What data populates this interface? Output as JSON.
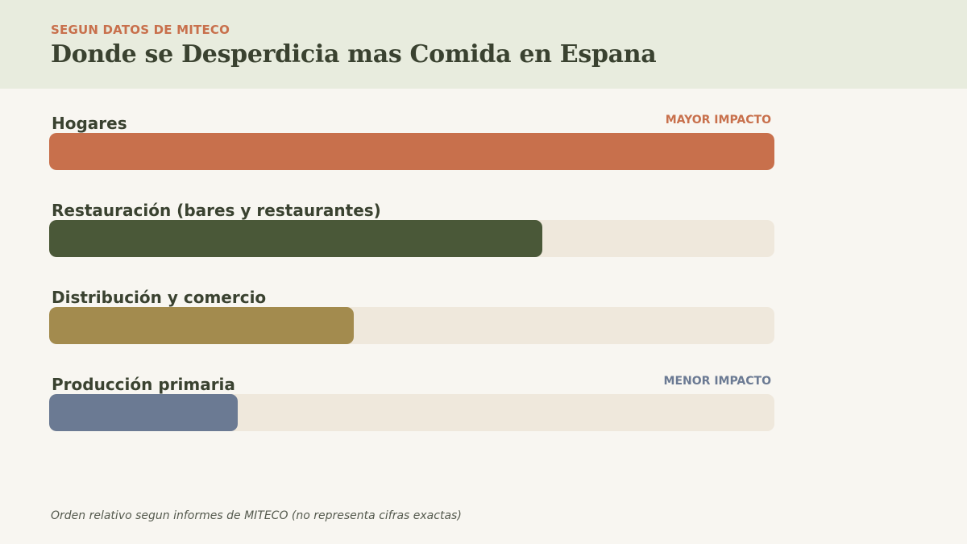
{
  "header": {
    "kicker": "SEGUN DATOS DE MITECO",
    "title": "Donde se Desperdicia mas Comida en Espana"
  },
  "colors": {
    "header_bg": "#e8ecde",
    "track": "#efe8dc",
    "high_tag": "#c8704c",
    "low_tag": "#6b7a93"
  },
  "chart_data": {
    "type": "bar",
    "orientation": "horizontal",
    "categories": [
      "Hogares",
      "Restauración (bares y restaurantes)",
      "Distribución y comercio",
      "Producción primaria"
    ],
    "values": [
      100,
      68,
      42,
      26
    ],
    "value_unit": "percent of largest (relative order, no exact figures)",
    "colors": [
      "#c8704c",
      "#4a5838",
      "#a38b4e",
      "#6b7a93"
    ],
    "annotations": [
      {
        "category_index": 0,
        "text": "MAYOR IMPACTO",
        "color": "#c8704c"
      },
      {
        "category_index": 3,
        "text": "MENOR IMPACTO",
        "color": "#6b7a93"
      }
    ],
    "grid": false,
    "legend": "none"
  },
  "footnote": "Orden relativo segun informes de MITECO (no representa cifras exactas)"
}
